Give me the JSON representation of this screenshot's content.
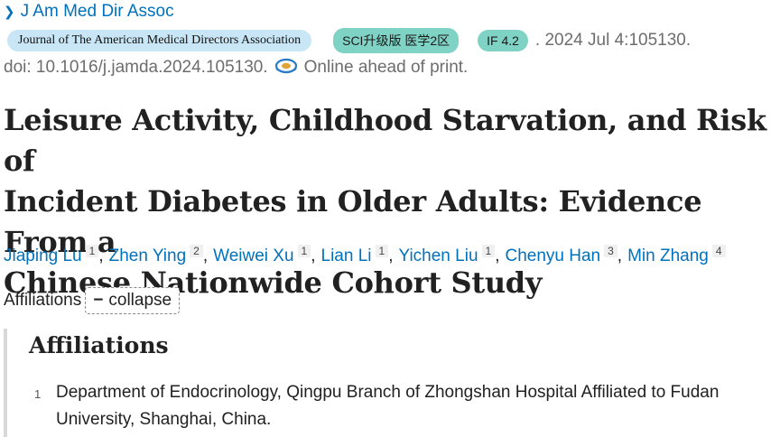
{
  "journal_abbrev": "J Am Med Dir Assoc",
  "badges": {
    "journal_full": "Journal of The American Medical Directors Association",
    "sci": "SCI升级版 医学2区",
    "impact": "IF 4.2"
  },
  "citation": {
    "date_pages": ". 2024 Jul 4:105130.",
    "doi": "doi: 10.1016/j.jamda.2024.105130.",
    "status": "Online ahead of print."
  },
  "title_lines": [
    "Leisure Activity, Childhood Starvation, and Risk of",
    "Incident Diabetes in Older Adults: Evidence From a",
    "Chinese Nationwide Cohort Study"
  ],
  "authors": [
    {
      "name": "Jiaping Lu",
      "aff": "1"
    },
    {
      "name": "Zhen Ying",
      "aff": "2"
    },
    {
      "name": "Weiwei Xu",
      "aff": "1"
    },
    {
      "name": "Lian Li",
      "aff": "1"
    },
    {
      "name": "Yichen Liu",
      "aff": "1"
    },
    {
      "name": "Chenyu Han",
      "aff": "3"
    },
    {
      "name": "Min Zhang",
      "aff": "4"
    }
  ],
  "affiliations_label": "Affiliations",
  "collapse_label": "collapse",
  "affiliations_heading": "Affiliations",
  "affiliation_items": [
    {
      "num": "1",
      "text": "Department of Endocrinology, Qingpu Branch of Zhongshan Hospital Affiliated to Fudan University, Shanghai, China."
    }
  ],
  "icons": {
    "journal_chevron": "chevron-right-icon",
    "online_status": "online-epub-icon",
    "collapse": "minus-icon"
  },
  "colors": {
    "link": "#0071bc",
    "journal_badge": "#c8e6f5",
    "metric_badge": "#7fd3c4",
    "muted_text": "#6d6d6d"
  }
}
